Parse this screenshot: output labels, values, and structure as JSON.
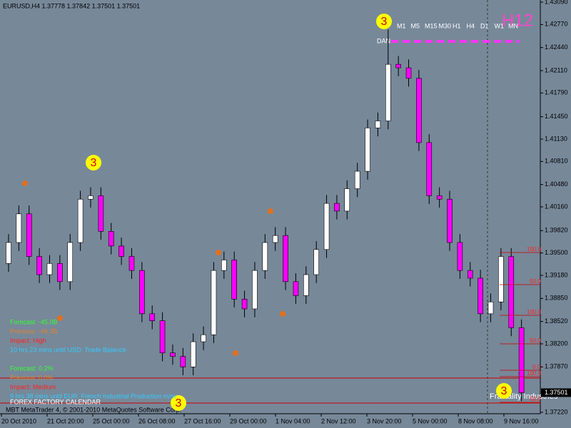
{
  "chart_data": {
    "type": "candlestick",
    "title": "EURUSD,H4  1.37778 1.37842 1.37501 1.37501",
    "timeframe_label": "H12",
    "timeframes": [
      "M1",
      "M5",
      "M15",
      "M30",
      "H1",
      "H4",
      "D1",
      "W1",
      "MN"
    ],
    "line_label": "DAN",
    "open": [
      1.3935,
      1.3965,
      1.4006,
      1.3945,
      1.3919,
      1.3935,
      1.3909,
      1.3965,
      1.4027,
      1.4032,
      1.3981,
      1.396,
      1.3945,
      1.3925,
      1.3863,
      1.3853,
      1.3807,
      1.3802,
      1.3787,
      1.3823,
      1.3833,
      1.3925,
      1.394,
      1.3884,
      1.387,
      1.3925,
      1.3965,
      1.3975,
      1.3909,
      1.3889,
      1.3919,
      1.3955,
      1.4021,
      1.401,
      1.4042,
      1.4067,
      1.4129,
      1.4139,
      1.422,
      1.4215,
      1.42,
      1.4108,
      1.4032,
      1.4027,
      1.3965,
      1.3925,
      1.3914,
      1.3863,
      1.388,
      1.3945,
      1.3843
    ],
    "high": [
      1.3977,
      1.4018,
      1.4018,
      1.3957,
      1.3947,
      1.3947,
      1.3977,
      1.4039,
      1.4044,
      1.4044,
      1.3993,
      1.3972,
      1.3957,
      1.3937,
      1.3875,
      1.3865,
      1.3819,
      1.3814,
      1.3835,
      1.3845,
      1.3937,
      1.3952,
      1.3952,
      1.3896,
      1.3937,
      1.3977,
      1.3987,
      1.3987,
      1.3921,
      1.3931,
      1.3967,
      1.4033,
      1.4033,
      1.4054,
      1.4079,
      1.4141,
      1.4151,
      1.427,
      1.4232,
      1.4227,
      1.4212,
      1.412,
      1.4044,
      1.4039,
      1.3977,
      1.3937,
      1.3926,
      1.3892,
      1.3957,
      1.3957,
      1.3855
    ],
    "low": [
      1.3923,
      1.3953,
      1.3933,
      1.3907,
      1.3907,
      1.3897,
      1.3897,
      1.3953,
      1.4015,
      1.3969,
      1.3948,
      1.3933,
      1.3913,
      1.3851,
      1.3841,
      1.3795,
      1.379,
      1.3775,
      1.3775,
      1.3811,
      1.3821,
      1.3913,
      1.3872,
      1.3858,
      1.3858,
      1.3913,
      1.3953,
      1.3897,
      1.3877,
      1.3877,
      1.3907,
      1.3943,
      1.3998,
      1.3998,
      1.403,
      1.4055,
      1.4117,
      1.4127,
      1.4203,
      1.4188,
      1.4096,
      1.402,
      1.4015,
      1.3953,
      1.3913,
      1.3902,
      1.3851,
      1.3851,
      1.3868,
      1.3831,
      1.3738
    ],
    "close": [
      1.3965,
      1.4006,
      1.3945,
      1.3919,
      1.3935,
      1.3909,
      1.3965,
      1.4027,
      1.4032,
      1.3981,
      1.396,
      1.3945,
      1.3925,
      1.3863,
      1.3853,
      1.3807,
      1.3802,
      1.3787,
      1.3823,
      1.3833,
      1.3925,
      1.394,
      1.3884,
      1.387,
      1.3925,
      1.3965,
      1.3975,
      1.3909,
      1.3889,
      1.3919,
      1.3955,
      1.4021,
      1.401,
      1.4042,
      1.4067,
      1.4129,
      1.4139,
      1.422,
      1.4215,
      1.42,
      1.4108,
      1.4032,
      1.4027,
      1.3965,
      1.3925,
      1.3914,
      1.3863,
      1.388,
      1.3945,
      1.3843,
      1.375
    ],
    "bull_color": "#ffffff",
    "bear_color": "#ff00ff",
    "ylim": [
      1.3722,
      1.4309
    ],
    "yticks": [
      {
        "value": 1.4309,
        "label": "1.43090"
      },
      {
        "value": 1.4277,
        "label": "1.42770"
      },
      {
        "value": 1.4244,
        "label": "1.42440"
      },
      {
        "value": 1.4211,
        "label": "1.42110"
      },
      {
        "value": 1.4179,
        "label": "1.41790"
      },
      {
        "value": 1.4145,
        "label": "1.41450"
      },
      {
        "value": 1.4113,
        "label": "1.41130"
      },
      {
        "value": 1.4081,
        "label": "1.40810"
      },
      {
        "value": 1.4048,
        "label": "1.40480"
      },
      {
        "value": 1.4016,
        "label": "1.40160"
      },
      {
        "value": 1.3982,
        "label": "1.39820"
      },
      {
        "value": 1.395,
        "label": "1.39500"
      },
      {
        "value": 1.3918,
        "label": "1.39180"
      },
      {
        "value": 1.3885,
        "label": "1.38850"
      },
      {
        "value": 1.3852,
        "label": "1.38520"
      },
      {
        "value": 1.382,
        "label": "1.38200"
      },
      {
        "value": 1.3787,
        "label": "1.37870"
      },
      {
        "value": 1.3722,
        "label": "1.37220"
      }
    ],
    "current_price": {
      "value": 1.37501,
      "label": "1.37501"
    },
    "time_axis_labels": [
      "20 Oct 2010",
      "21 Oct 20:00",
      "25 Oct 00:00",
      "26 Oct 08:00",
      "27 Oct 16:00",
      "29 Oct 00:00",
      "1 Nov 04:00",
      "2 Nov 12:00",
      "3 Nov 20:00",
      "5 Nov 00:00",
      "8 Nov 08:00",
      "9 Nov 16:00"
    ],
    "markers": [
      "3",
      "3",
      "3",
      "3"
    ],
    "fib_labels": [
      "100.0",
      "50.0",
      "100.0",
      "50.0",
      "0.0",
      "100.0",
      "50.0"
    ],
    "calendar": {
      "events": [
        {
          "forecast": "Forecast: -45.0B",
          "previous": "Previous: -46.3B",
          "impact": "Impact: High",
          "countdown": "10 hrs 23 mins until USD: Trade Balance"
        },
        {
          "forecast": "Forecast: 0.2%",
          "previous": "Previous: 0.0%",
          "impact": "Impact: Medium",
          "countdown": "9 hrs 38 mins until EUR: French Industrial Production m/m"
        }
      ],
      "title": "FOREX FACTORY CALENDAR"
    },
    "watermark": "Fractality Industries",
    "footer": "MBT MetaTrader 4, © 2001-2010 MetaQuotes Software Corp."
  }
}
